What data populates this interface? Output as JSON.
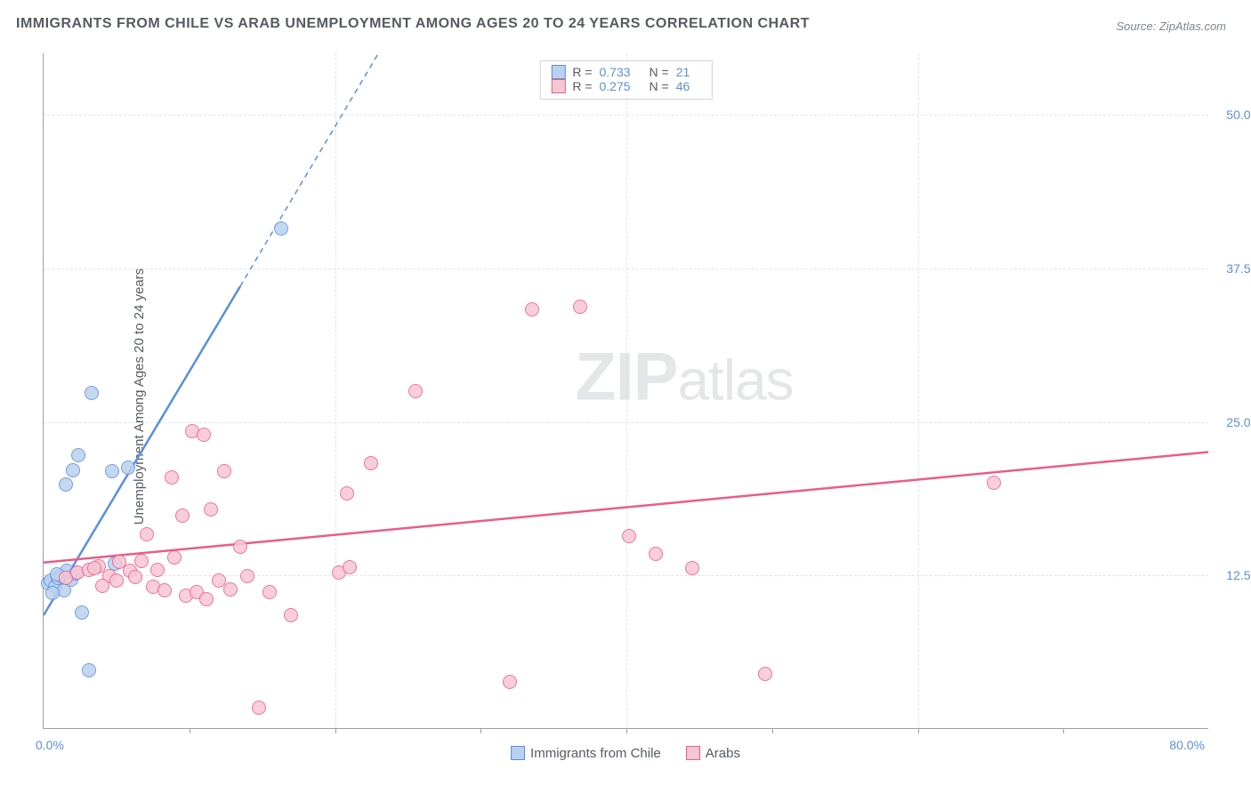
{
  "title": "IMMIGRANTS FROM CHILE VS ARAB UNEMPLOYMENT AMONG AGES 20 TO 24 YEARS CORRELATION CHART",
  "source": "Source: ZipAtlas.com",
  "ylabel": "Unemployment Among Ages 20 to 24 years",
  "watermark_bold": "ZIP",
  "watermark_thin": "atlas",
  "chart": {
    "type": "scatter",
    "background_color": "#ffffff",
    "grid_color": "#dfe3e6",
    "axis_color": "#9aa0a6",
    "xlim": [
      0,
      80
    ],
    "ylim": [
      0,
      55
    ],
    "x_origin_label": "0.0%",
    "x_max_label": "80.0%",
    "y_ticks": [
      {
        "value": 12.5,
        "label": "12.5%"
      },
      {
        "value": 25.0,
        "label": "25.0%"
      },
      {
        "value": 37.5,
        "label": "37.5%"
      },
      {
        "value": 50.0,
        "label": "50.0%"
      }
    ],
    "x_grid_values": [
      20,
      40,
      60
    ],
    "x_tick_marks": [
      10,
      20,
      30,
      40,
      50,
      60,
      70
    ],
    "tick_label_color": "#5b8fd9",
    "tick_fontsize": 14,
    "title_fontsize": 16,
    "title_color": "#555b60",
    "label_fontsize": 15,
    "marker_size": 16,
    "marker_border_width": 1.5,
    "trend_line_width": 2.5
  },
  "series": [
    {
      "name": "Immigrants from Chile",
      "legend_label": "Immigrants from Chile",
      "color_stroke": "#5b8fd9",
      "color_fill": "#b9d1ef",
      "R": "0.733",
      "N": "21",
      "trend": {
        "x1": 0,
        "y1": 9.2,
        "x2_solid": 13.5,
        "y2_solid": 36,
        "x2_dash": 23,
        "y2_dash": 55
      },
      "points": [
        {
          "x": 0.3,
          "y": 11.8
        },
        {
          "x": 0.5,
          "y": 12.0
        },
        {
          "x": 0.8,
          "y": 11.5
        },
        {
          "x": 1.0,
          "y": 12.2
        },
        {
          "x": 1.2,
          "y": 12.4
        },
        {
          "x": 1.4,
          "y": 11.2
        },
        {
          "x": 1.6,
          "y": 12.8
        },
        {
          "x": 1.9,
          "y": 12.1
        },
        {
          "x": 2.2,
          "y": 12.6
        },
        {
          "x": 2.6,
          "y": 9.4
        },
        {
          "x": 3.1,
          "y": 4.7
        },
        {
          "x": 1.5,
          "y": 19.8
        },
        {
          "x": 2.4,
          "y": 22.2
        },
        {
          "x": 2.0,
          "y": 21.0
        },
        {
          "x": 3.3,
          "y": 27.3
        },
        {
          "x": 4.7,
          "y": 20.9
        },
        {
          "x": 5.8,
          "y": 21.2
        },
        {
          "x": 4.9,
          "y": 13.4
        },
        {
          "x": 16.3,
          "y": 40.7
        },
        {
          "x": 0.6,
          "y": 11.0
        },
        {
          "x": 0.9,
          "y": 12.5
        }
      ]
    },
    {
      "name": "Arabs",
      "legend_label": "Arabs",
      "color_stroke": "#ea5d86",
      "color_fill": "#f7c6d4",
      "R": "0.275",
      "N": "46",
      "trend": {
        "x1": 0,
        "y1": 13.5,
        "x2_solid": 80,
        "y2_solid": 22.5,
        "x2_dash": 80,
        "y2_dash": 22.5
      },
      "points": [
        {
          "x": 1.5,
          "y": 12.2
        },
        {
          "x": 2.3,
          "y": 12.7
        },
        {
          "x": 3.1,
          "y": 12.9
        },
        {
          "x": 3.8,
          "y": 13.2
        },
        {
          "x": 4.5,
          "y": 12.4
        },
        {
          "x": 5.2,
          "y": 13.5
        },
        {
          "x": 5.9,
          "y": 12.8
        },
        {
          "x": 6.7,
          "y": 13.6
        },
        {
          "x": 7.5,
          "y": 11.5
        },
        {
          "x": 8.3,
          "y": 11.2
        },
        {
          "x": 9.0,
          "y": 13.9
        },
        {
          "x": 9.8,
          "y": 10.8
        },
        {
          "x": 10.5,
          "y": 11.1
        },
        {
          "x": 11.2,
          "y": 10.5
        },
        {
          "x": 12.0,
          "y": 12.0
        },
        {
          "x": 12.8,
          "y": 11.3
        },
        {
          "x": 14.0,
          "y": 12.4
        },
        {
          "x": 15.5,
          "y": 11.1
        },
        {
          "x": 17.0,
          "y": 9.2
        },
        {
          "x": 7.1,
          "y": 15.8
        },
        {
          "x": 8.8,
          "y": 20.4
        },
        {
          "x": 9.5,
          "y": 17.3
        },
        {
          "x": 10.2,
          "y": 24.2
        },
        {
          "x": 11.5,
          "y": 17.8
        },
        {
          "x": 12.4,
          "y": 20.9
        },
        {
          "x": 11.0,
          "y": 23.9
        },
        {
          "x": 13.5,
          "y": 14.8
        },
        {
          "x": 14.8,
          "y": 1.7
        },
        {
          "x": 20.3,
          "y": 12.7
        },
        {
          "x": 21.0,
          "y": 13.1
        },
        {
          "x": 22.5,
          "y": 21.6
        },
        {
          "x": 20.8,
          "y": 19.1
        },
        {
          "x": 25.5,
          "y": 27.4
        },
        {
          "x": 32.0,
          "y": 3.8
        },
        {
          "x": 33.5,
          "y": 34.1
        },
        {
          "x": 36.8,
          "y": 34.3
        },
        {
          "x": 40.2,
          "y": 15.6
        },
        {
          "x": 42.0,
          "y": 14.2
        },
        {
          "x": 44.5,
          "y": 13.0
        },
        {
          "x": 49.5,
          "y": 4.4
        },
        {
          "x": 65.2,
          "y": 20.0
        },
        {
          "x": 4.0,
          "y": 11.6
        },
        {
          "x": 5.0,
          "y": 12.0
        },
        {
          "x": 6.3,
          "y": 12.3
        },
        {
          "x": 7.8,
          "y": 12.9
        },
        {
          "x": 3.5,
          "y": 13.0
        }
      ]
    }
  ],
  "legend_top_labels": {
    "R": "R =",
    "N": "N ="
  }
}
